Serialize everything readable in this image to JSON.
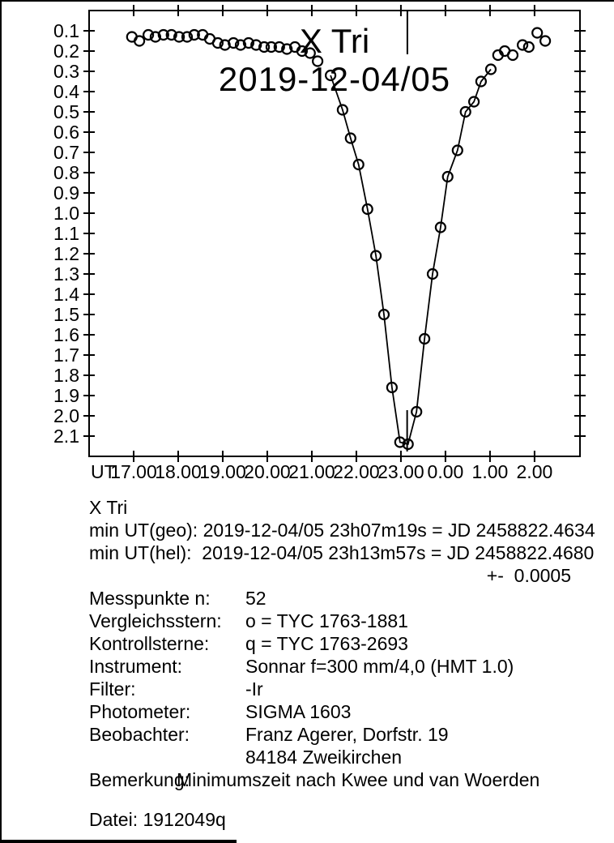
{
  "page": {
    "paper_color": "#ffffff",
    "ink_color": "#000000"
  },
  "chart_data": {
    "type": "scatter",
    "title": "X Tri",
    "subtitle": "2019-12-04/05",
    "grid": false,
    "legend": null,
    "x_axis": {
      "prefix_label": "UT",
      "xlim": [
        16.0,
        27.02
      ],
      "tick_hours": [
        17,
        18,
        19,
        20,
        21,
        22,
        23,
        24,
        25,
        26
      ],
      "tick_labels": [
        "17.00",
        "18.00",
        "19.00",
        "20.00",
        "21.00",
        "22.00",
        "23.00",
        "0.00",
        "1.00",
        "2.00"
      ]
    },
    "y_axis": {
      "unit": "mag",
      "inverted_visual": true,
      "ylim": [
        0.0,
        2.2
      ],
      "tick_values": [
        0.1,
        0.2,
        0.3,
        0.4,
        0.5,
        0.6,
        0.7,
        0.8,
        0.9,
        1.0,
        1.1,
        1.2,
        1.3,
        1.4,
        1.5,
        1.6,
        1.7,
        1.8,
        1.9,
        2.0,
        2.1
      ],
      "tick_labels": [
        "0.1",
        "0.2",
        "0.3",
        "0.4",
        "0.5",
        "0.6",
        "0.7",
        "0.8",
        "0.9",
        "1.0",
        "1.1",
        "1.2",
        "1.3",
        "1.4",
        "1.5",
        "1.6",
        "1.7",
        "1.8",
        "1.9",
        "2.0",
        "2.1"
      ]
    },
    "series": [
      {
        "name": "pre-eclipse-plateau",
        "marker": "open-circle",
        "connected": false,
        "points": [
          [
            16.96,
            0.13
          ],
          [
            17.13,
            0.15
          ],
          [
            17.33,
            0.12
          ],
          [
            17.49,
            0.13
          ],
          [
            17.67,
            0.12
          ],
          [
            17.85,
            0.12
          ],
          [
            18.02,
            0.13
          ],
          [
            18.2,
            0.13
          ],
          [
            18.36,
            0.12
          ],
          [
            18.55,
            0.12
          ],
          [
            18.71,
            0.14
          ],
          [
            18.89,
            0.16
          ],
          [
            19.05,
            0.17
          ],
          [
            19.24,
            0.16
          ],
          [
            19.4,
            0.17
          ],
          [
            19.58,
            0.16
          ],
          [
            19.75,
            0.17
          ],
          [
            19.93,
            0.18
          ],
          [
            20.09,
            0.18
          ],
          [
            20.27,
            0.18
          ],
          [
            20.44,
            0.19
          ],
          [
            20.62,
            0.18
          ],
          [
            20.78,
            0.2
          ],
          [
            20.96,
            0.21
          ],
          [
            21.13,
            0.25
          ]
        ]
      },
      {
        "name": "eclipse-branch-with-fit-line",
        "marker": "open-circle",
        "connected": true,
        "points": [
          [
            21.42,
            0.32
          ],
          [
            21.69,
            0.49
          ],
          [
            21.87,
            0.63
          ],
          [
            22.05,
            0.76
          ],
          [
            22.25,
            0.98
          ],
          [
            22.44,
            1.21
          ],
          [
            22.62,
            1.5
          ],
          [
            22.8,
            1.86
          ],
          [
            22.98,
            2.13
          ],
          [
            23.16,
            2.14
          ],
          [
            23.35,
            1.98
          ],
          [
            23.53,
            1.62
          ],
          [
            23.71,
            1.3
          ],
          [
            23.89,
            1.07
          ],
          [
            24.05,
            0.82
          ],
          [
            24.27,
            0.69
          ],
          [
            24.45,
            0.5
          ],
          [
            24.64,
            0.45
          ],
          [
            24.8,
            0.35
          ],
          [
            25.02,
            0.29
          ]
        ]
      },
      {
        "name": "post-eclipse-plateau",
        "marker": "open-circle",
        "connected": false,
        "points": [
          [
            25.18,
            0.22
          ],
          [
            25.33,
            0.2
          ],
          [
            25.51,
            0.22
          ],
          [
            25.73,
            0.17
          ],
          [
            25.87,
            0.18
          ],
          [
            26.06,
            0.11
          ],
          [
            26.24,
            0.15
          ]
        ]
      }
    ],
    "minimum_markers": [
      {
        "name": "top-marker",
        "hour": 23.145,
        "mag_from": 0.0,
        "mag_to": 0.216
      },
      {
        "name": "bottom-marker",
        "hour": 23.14,
        "mag_from": 1.972,
        "mag_to": 2.176
      }
    ]
  },
  "results": {
    "star_name": "X Tri",
    "min_geo": "min UT(geo): 2019-12-04/05 23h07m19s = JD 2458822.4634",
    "min_hel": "min UT(hel):  2019-12-04/05 23h13m57s = JD 2458822.4680",
    "uncertainty": "+-  0.0005"
  },
  "details": {
    "rows": [
      {
        "label": "Messpunkte n:",
        "value": "52"
      },
      {
        "label": "Vergleichsstern:",
        "value": "o = TYC 1763-1881"
      },
      {
        "label": "Kontrollsterne:",
        "value": "q = TYC 1763-2693"
      },
      {
        "label": "Instrument:",
        "value": "Sonnar f=300 mm/4,0 (HMT 1.0)"
      },
      {
        "label": "Filter:",
        "value": "-Ir"
      },
      {
        "label": "Photometer:",
        "value": "SIGMA 1603"
      },
      {
        "label": "Beobachter:",
        "value": "Franz Agerer, Dorfstr. 19"
      },
      {
        "label": "",
        "value": "84184 Zweikirchen"
      }
    ],
    "remark_label": "Bemerkung:",
    "remark_text": "Minimumszeit nach Kwee und van Woerden",
    "file_line": "Datei: 1912049q"
  }
}
